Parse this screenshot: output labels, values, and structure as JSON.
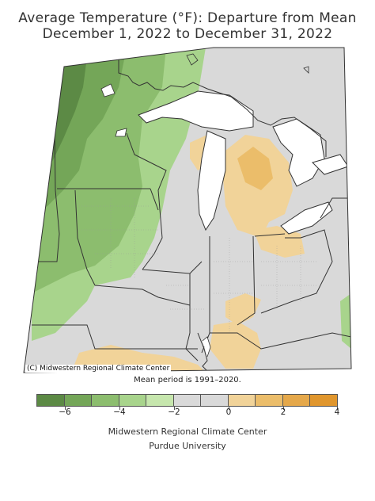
{
  "title": {
    "line1": "Average Temperature (°F): Departure from Mean",
    "line2": "December 1, 2022 to December 31, 2022"
  },
  "map": {
    "credit": "(C) Midwestern Regional Climate Center",
    "mean_period": "Mean period is 1991–2020."
  },
  "legend": {
    "tick_labels": [
      "−6",
      "−4",
      "−2",
      "0",
      "2",
      "4"
    ],
    "colors": [
      "#5c8a45",
      "#74a658",
      "#8cbd6e",
      "#a8d48c",
      "#c6e6ad",
      "#d9d9d9",
      "#d9d9d9",
      "#f1d399",
      "#ebbd6a",
      "#e5a84a",
      "#e0962d"
    ]
  },
  "footer": {
    "line1": "Midwestern Regional Climate Center",
    "line2": "Purdue University"
  },
  "palette": {
    "lake": "#ffffff",
    "border": "#333333",
    "county": "#8a8a8a"
  }
}
